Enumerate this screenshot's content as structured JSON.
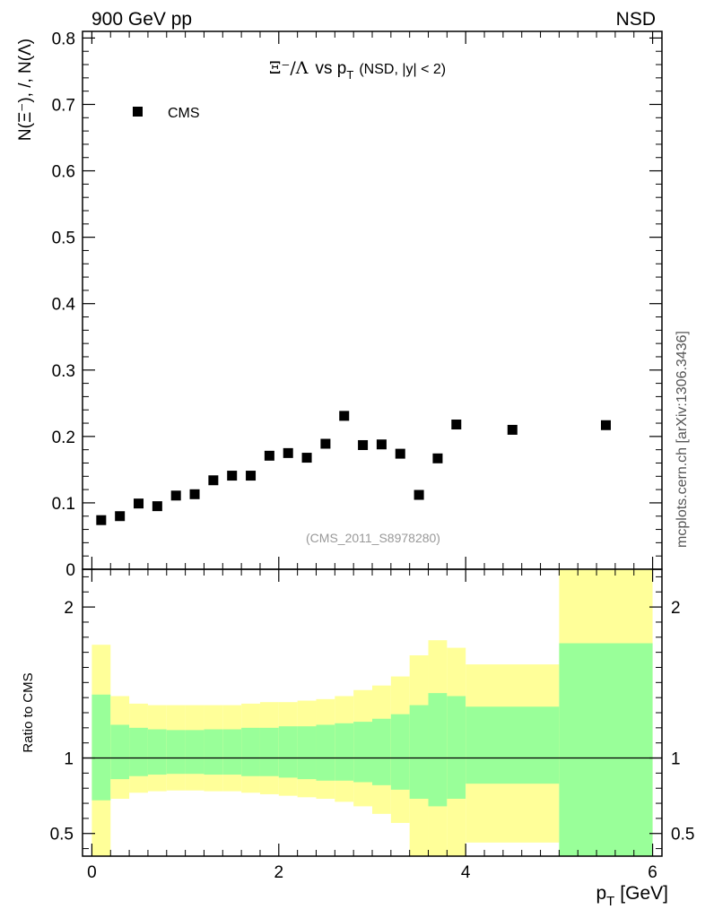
{
  "header": {
    "left_label": "900 GeV pp",
    "right_label": "NSD"
  },
  "side_label": "mcplots.cern.ch [arXiv:1306.3436]",
  "chart_data": [
    {
      "type": "scatter",
      "title_main": "Ξ⁻/Λ",
      "title_vs": "vs p",
      "title_sub": "T",
      "title_cut": "(NSD, |y| < 2)",
      "ylabel": "N(Ξ⁻), /, N(Λ)",
      "watermark": "(CMS_2011_S8978280)",
      "legend": [
        {
          "name": "CMS",
          "marker": "square",
          "color": "#000000"
        }
      ],
      "xlim": [
        -0.1,
        6.1
      ],
      "ylim": [
        0,
        0.81
      ],
      "yticks": [
        0,
        0.1,
        0.2,
        0.3,
        0.4,
        0.5,
        0.6,
        0.7,
        0.8
      ],
      "ytick_labels": [
        "0",
        "0.1",
        "0.2",
        "0.3",
        "0.4",
        "0.5",
        "0.6",
        "0.7",
        "0.8"
      ],
      "series": [
        {
          "name": "CMS",
          "x": [
            0.1,
            0.3,
            0.5,
            0.7,
            0.9,
            1.1,
            1.3,
            1.5,
            1.7,
            1.9,
            2.1,
            2.3,
            2.5,
            2.7,
            2.9,
            3.1,
            3.3,
            3.5,
            3.7,
            3.9,
            4.5,
            5.5
          ],
          "y": [
            0.074,
            0.08,
            0.099,
            0.095,
            0.111,
            0.113,
            0.134,
            0.141,
            0.141,
            0.171,
            0.175,
            0.168,
            0.189,
            0.231,
            0.187,
            0.188,
            0.174,
            0.112,
            0.167,
            0.218,
            0.21,
            0.217
          ]
        }
      ]
    },
    {
      "type": "area",
      "ylabel": "Ratio to CMS",
      "xlabel_main": "p",
      "xlabel_sub": "T",
      "xlabel_unit": "[GeV]",
      "xlim": [
        -0.1,
        6.1
      ],
      "ylim": [
        0.35,
        2.25
      ],
      "xticks": [
        0,
        2,
        4,
        6
      ],
      "xtick_labels": [
        "0",
        "2",
        "4",
        "6"
      ],
      "yticks": [
        0.5,
        1,
        2
      ],
      "ytick_labels": [
        "0.5",
        "1",
        "2"
      ],
      "reference_line": 1,
      "bins": [
        {
          "x0": 0.0,
          "x1": 0.2,
          "stat_lo": 0.72,
          "stat_hi": 1.42,
          "tot_lo": 0.22,
          "tot_hi": 1.75
        },
        {
          "x0": 0.2,
          "x1": 0.4,
          "stat_lo": 0.86,
          "stat_hi": 1.22,
          "tot_lo": 0.73,
          "tot_hi": 1.41
        },
        {
          "x0": 0.4,
          "x1": 0.6,
          "stat_lo": 0.88,
          "stat_hi": 1.2,
          "tot_lo": 0.77,
          "tot_hi": 1.36
        },
        {
          "x0": 0.6,
          "x1": 0.8,
          "stat_lo": 0.89,
          "stat_hi": 1.19,
          "tot_lo": 0.78,
          "tot_hi": 1.35
        },
        {
          "x0": 0.8,
          "x1": 1.0,
          "stat_lo": 0.895,
          "stat_hi": 1.185,
          "tot_lo": 0.785,
          "tot_hi": 1.35
        },
        {
          "x0": 1.0,
          "x1": 1.2,
          "stat_lo": 0.895,
          "stat_hi": 1.185,
          "tot_lo": 0.785,
          "tot_hi": 1.35
        },
        {
          "x0": 1.2,
          "x1": 1.4,
          "stat_lo": 0.89,
          "stat_hi": 1.19,
          "tot_lo": 0.78,
          "tot_hi": 1.35
        },
        {
          "x0": 1.4,
          "x1": 1.6,
          "stat_lo": 0.89,
          "stat_hi": 1.19,
          "tot_lo": 0.78,
          "tot_hi": 1.35
        },
        {
          "x0": 1.6,
          "x1": 1.8,
          "stat_lo": 0.88,
          "stat_hi": 1.2,
          "tot_lo": 0.77,
          "tot_hi": 1.36
        },
        {
          "x0": 1.8,
          "x1": 2.0,
          "stat_lo": 0.88,
          "stat_hi": 1.2,
          "tot_lo": 0.76,
          "tot_hi": 1.37
        },
        {
          "x0": 2.0,
          "x1": 2.2,
          "stat_lo": 0.87,
          "stat_hi": 1.21,
          "tot_lo": 0.75,
          "tot_hi": 1.37
        },
        {
          "x0": 2.2,
          "x1": 2.4,
          "stat_lo": 0.86,
          "stat_hi": 1.21,
          "tot_lo": 0.74,
          "tot_hi": 1.38
        },
        {
          "x0": 2.4,
          "x1": 2.6,
          "stat_lo": 0.85,
          "stat_hi": 1.22,
          "tot_lo": 0.73,
          "tot_hi": 1.39
        },
        {
          "x0": 2.6,
          "x1": 2.8,
          "stat_lo": 0.85,
          "stat_hi": 1.23,
          "tot_lo": 0.71,
          "tot_hi": 1.41
        },
        {
          "x0": 2.8,
          "x1": 3.0,
          "stat_lo": 0.84,
          "stat_hi": 1.24,
          "tot_lo": 0.68,
          "tot_hi": 1.45
        },
        {
          "x0": 3.0,
          "x1": 3.2,
          "stat_lo": 0.82,
          "stat_hi": 1.26,
          "tot_lo": 0.63,
          "tot_hi": 1.48
        },
        {
          "x0": 3.2,
          "x1": 3.4,
          "stat_lo": 0.79,
          "stat_hi": 1.29,
          "tot_lo": 0.57,
          "tot_hi": 1.54
        },
        {
          "x0": 3.4,
          "x1": 3.6,
          "stat_lo": 0.73,
          "stat_hi": 1.35,
          "tot_lo": 0.3,
          "tot_hi": 1.68
        },
        {
          "x0": 3.6,
          "x1": 3.8,
          "stat_lo": 0.68,
          "stat_hi": 1.43,
          "tot_lo": 0.3,
          "tot_hi": 1.78
        },
        {
          "x0": 3.8,
          "x1": 4.0,
          "stat_lo": 0.73,
          "stat_hi": 1.41,
          "tot_lo": 0.3,
          "tot_hi": 1.73
        },
        {
          "x0": 4.0,
          "x1": 5.0,
          "stat_lo": 0.83,
          "stat_hi": 1.34,
          "tot_lo": 0.44,
          "tot_hi": 1.62
        },
        {
          "x0": 5.0,
          "x1": 6.0,
          "stat_lo": 0.3,
          "stat_hi": 1.76,
          "tot_lo": 0.3,
          "tot_hi": 2.25
        }
      ],
      "colors": {
        "stat": "#99ff99",
        "total": "#ffff99",
        "line": "#000000"
      }
    }
  ]
}
